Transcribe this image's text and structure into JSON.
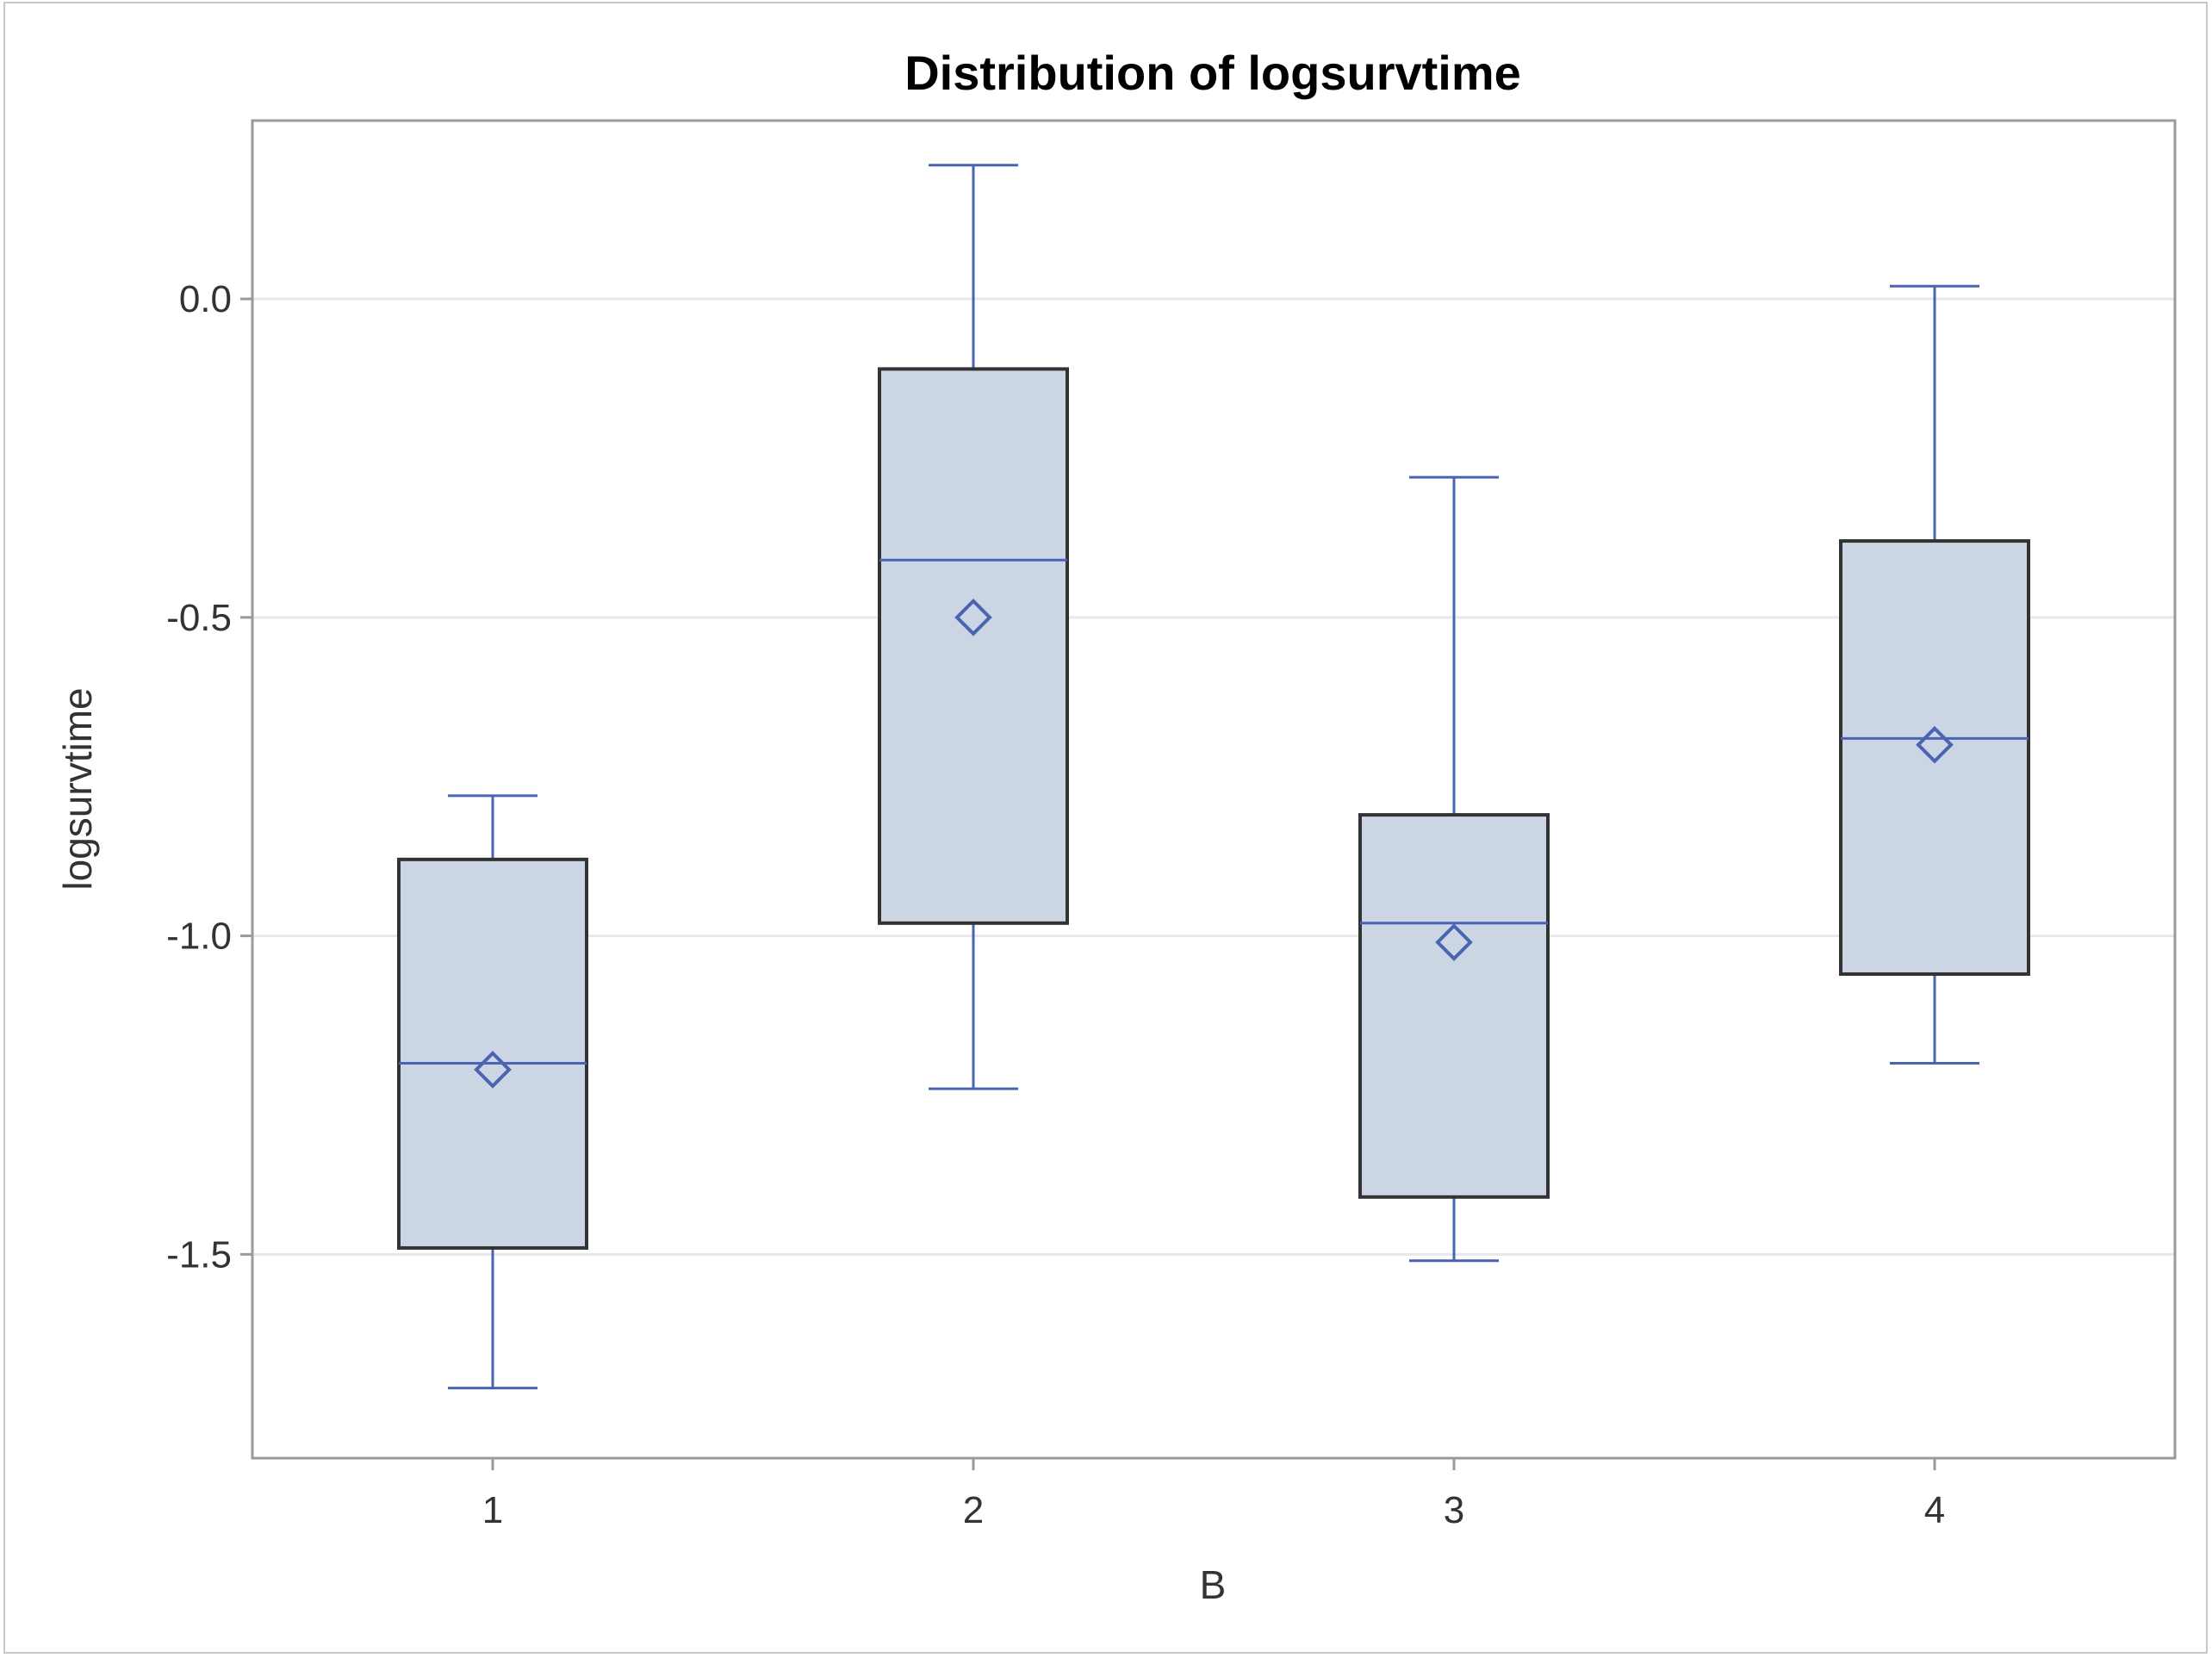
{
  "chart_data": {
    "type": "box",
    "title": "Distribution of logsurvtime",
    "xlabel": "B",
    "ylabel": "logsurvtime",
    "categories": [
      "1",
      "2",
      "3",
      "4"
    ],
    "ylim": [
      -1.82,
      0.28
    ],
    "yticks": [
      0.0,
      -0.5,
      -1.0,
      -1.5
    ],
    "ytick_labels": [
      "0.0",
      "-0.5",
      "-1.0",
      "-1.5"
    ],
    "grid": "horizontal",
    "boxes": [
      {
        "category": "1",
        "min": -1.71,
        "q1": -1.49,
        "median": -1.2,
        "mean": -1.21,
        "q3": -0.88,
        "max": -0.78
      },
      {
        "category": "2",
        "min": -1.24,
        "q1": -0.98,
        "median": -0.41,
        "mean": -0.5,
        "q3": -0.11,
        "max": 0.21
      },
      {
        "category": "3",
        "min": -1.51,
        "q1": -1.41,
        "median": -0.98,
        "mean": -1.01,
        "q3": -0.81,
        "max": -0.28
      },
      {
        "category": "4",
        "min": -1.2,
        "q1": -1.06,
        "median": -0.69,
        "mean": -0.7,
        "q3": -0.38,
        "max": 0.02
      }
    ],
    "colors": {
      "box_fill": "#ccd5e3",
      "box_edge": "#333333",
      "whisker": "#4a63b3",
      "median": "#4a63b3",
      "mean_marker": "#4a63b3",
      "grid": "#e8e8e8",
      "plot_border": "#9a9a9a"
    }
  }
}
